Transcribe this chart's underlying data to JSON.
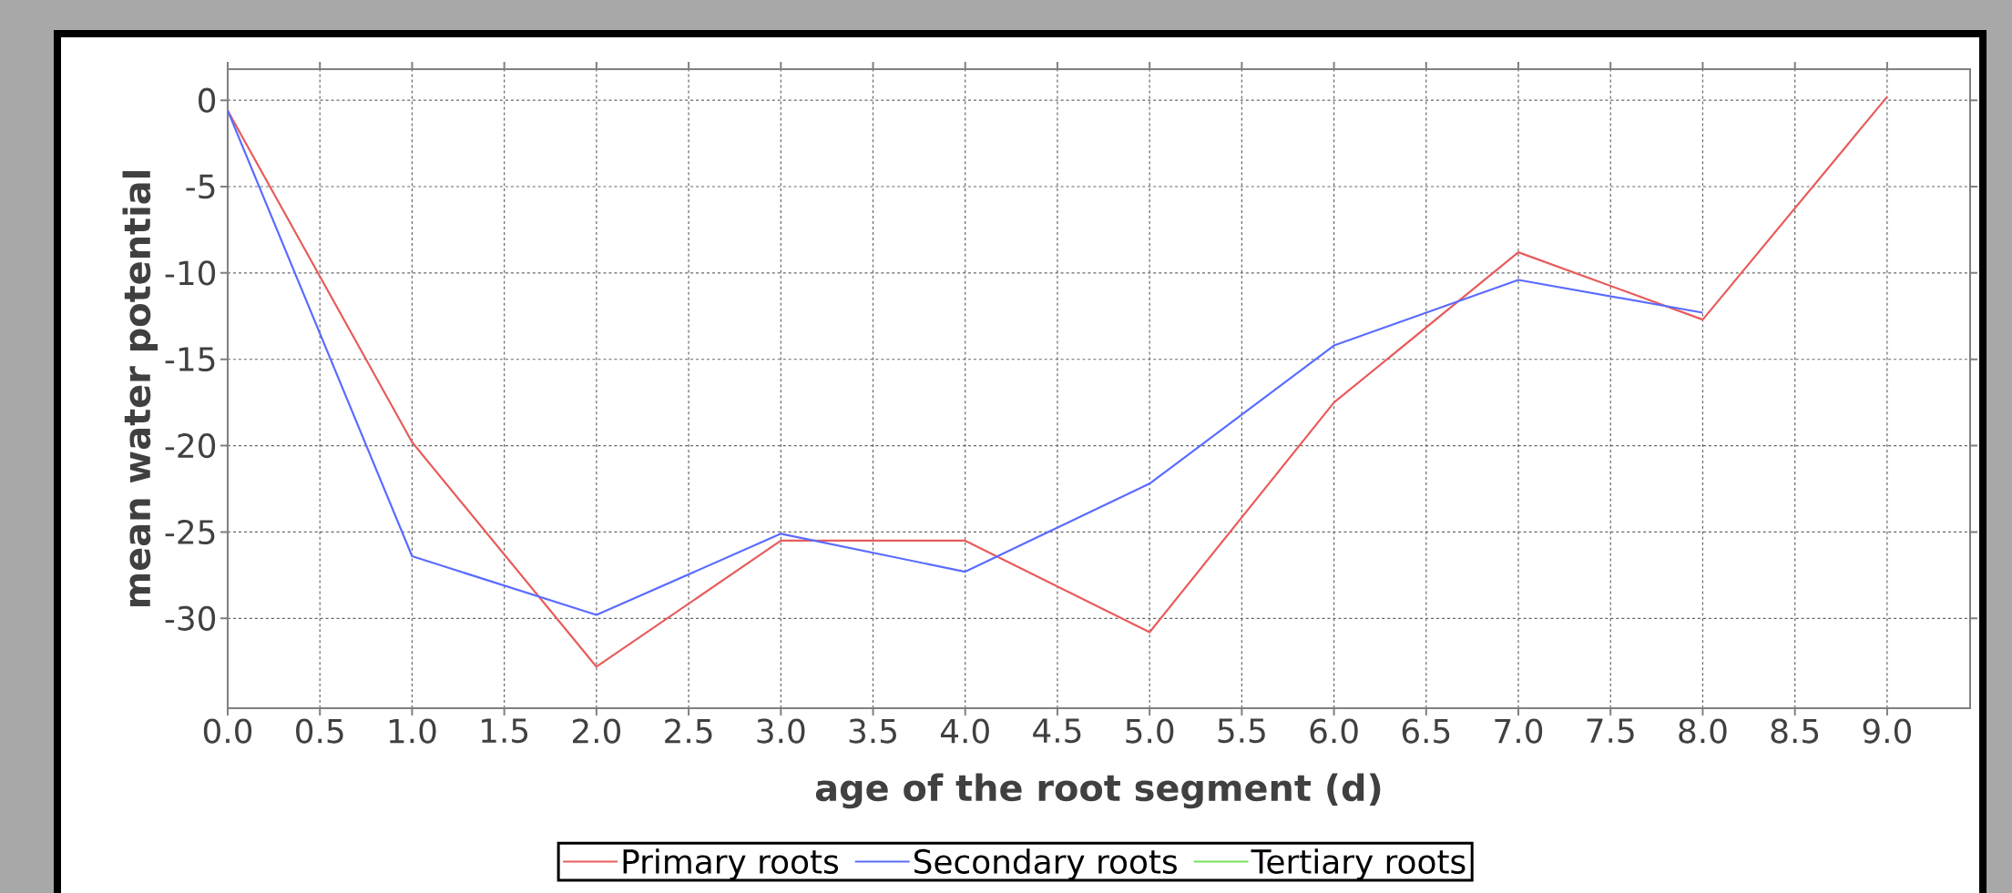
{
  "chart_data": {
    "type": "line",
    "xlabel": "age of the root segment (d)",
    "ylabel": "mean water potential",
    "x": [
      0,
      1,
      2,
      3,
      4,
      5,
      6,
      7,
      8,
      9
    ],
    "series": [
      {
        "name": "Primary roots",
        "color": "#e85c5c",
        "values": [
          -0.6,
          -19.8,
          -32.8,
          -25.5,
          -25.5,
          -30.8,
          -17.5,
          -8.8,
          -12.7,
          0.2
        ]
      },
      {
        "name": "Secondary roots",
        "color": "#5a6cff",
        "values": [
          -0.6,
          -26.4,
          -29.8,
          -25.1,
          -27.3,
          -22.2,
          -14.2,
          -10.4,
          -12.3,
          null
        ]
      },
      {
        "name": "Tertiary roots",
        "color": "#77e35a",
        "values": [
          null,
          null,
          null,
          null,
          null,
          null,
          null,
          null,
          null,
          null
        ]
      }
    ],
    "xlim": [
      0,
      9.45
    ],
    "ylim": [
      -35.2,
      1.8
    ],
    "xticks": [
      {
        "value": 0,
        "label": "0.0"
      },
      {
        "value": 0.5,
        "label": "0.5"
      },
      {
        "value": 1,
        "label": "1.0"
      },
      {
        "value": 1.5,
        "label": "1.5"
      },
      {
        "value": 2,
        "label": "2.0"
      },
      {
        "value": 2.5,
        "label": "2.5"
      },
      {
        "value": 3,
        "label": "3.0"
      },
      {
        "value": 3.5,
        "label": "3.5"
      },
      {
        "value": 4,
        "label": "4.0"
      },
      {
        "value": 4.5,
        "label": "4.5"
      },
      {
        "value": 5,
        "label": "5.0"
      },
      {
        "value": 5.5,
        "label": "5.5"
      },
      {
        "value": 6,
        "label": "6.0"
      },
      {
        "value": 6.5,
        "label": "6.5"
      },
      {
        "value": 7,
        "label": "7.0"
      },
      {
        "value": 7.5,
        "label": "7.5"
      },
      {
        "value": 8,
        "label": "8.0"
      },
      {
        "value": 8.5,
        "label": "8.5"
      },
      {
        "value": 9,
        "label": "9.0"
      }
    ],
    "yticks": [
      0,
      -5,
      -10,
      -15,
      -20,
      -25,
      -30
    ],
    "grid": true,
    "legend": "bottom"
  }
}
